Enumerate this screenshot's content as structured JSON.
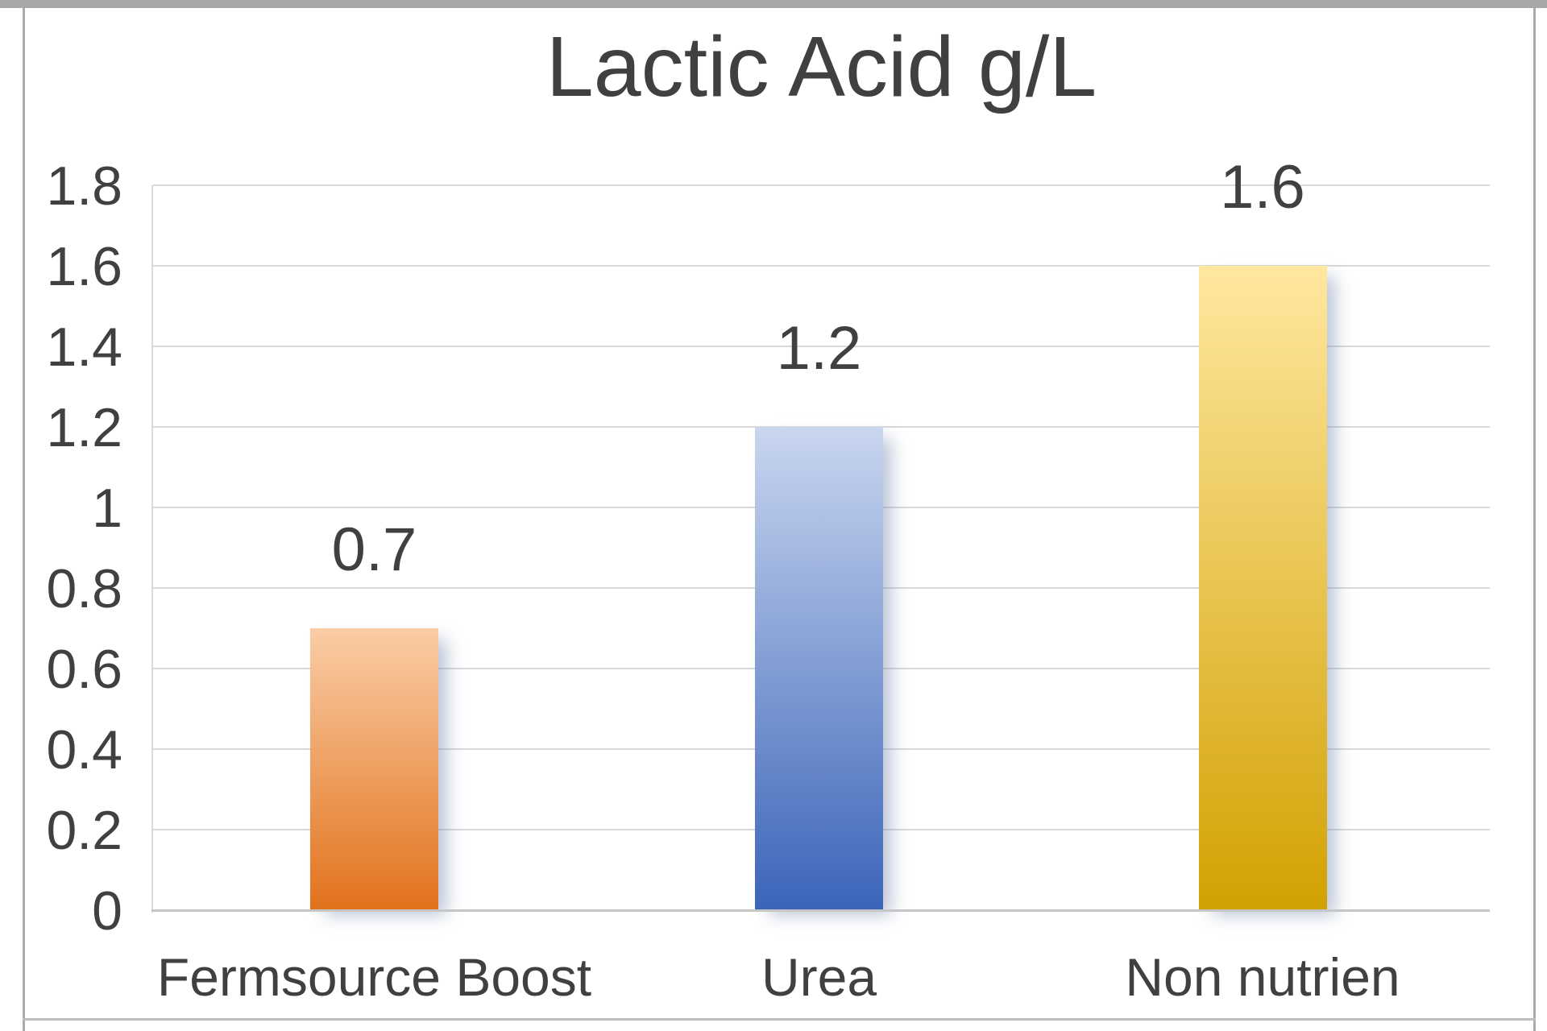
{
  "window": {
    "background": "#ffffff",
    "frame_color": "#ababad",
    "top_bar_color": "#a7a7aa"
  },
  "chart_data": {
    "type": "bar",
    "title": "Lactic Acid g/L",
    "categories": [
      "Fermsource Boost",
      "Urea",
      "Non nutrien"
    ],
    "values": [
      0.7,
      1.2,
      1.6
    ],
    "data_labels": [
      "0.7",
      "1.2",
      "1.6"
    ],
    "series": [
      {
        "name": "Lactic Acid g/L",
        "values": [
          0.7,
          1.2,
          1.6
        ]
      }
    ],
    "xlabel": "",
    "ylabel": "",
    "ylim": [
      0,
      1.8
    ],
    "ytick_step": 0.2,
    "yticks": [
      1.8,
      1.6,
      1.4,
      1.2,
      1,
      0.8,
      0.6,
      0.4,
      0.2,
      0
    ],
    "ytick_labels": [
      "1.8",
      "1.6",
      "1.4",
      "1.2",
      "1",
      "0.8",
      "0.6",
      "0.4",
      "0.2",
      "0"
    ],
    "grid": true,
    "legend_position": "none",
    "text_color": "#404040",
    "gridline_color": "#d9d9d9",
    "axis_line_color": "#c6c6c6",
    "bar_styles": [
      {
        "category": "Fermsource Boost",
        "gradient_top": "#FACDA6",
        "gradient_bottom": "#E2721C"
      },
      {
        "category": "Urea",
        "gradient_top": "#C9D6EF",
        "gradient_bottom": "#3B64B9"
      },
      {
        "category": "Non nutrien",
        "gradient_top": "#FFE79F",
        "gradient_bottom": "#D2A102"
      }
    ]
  }
}
